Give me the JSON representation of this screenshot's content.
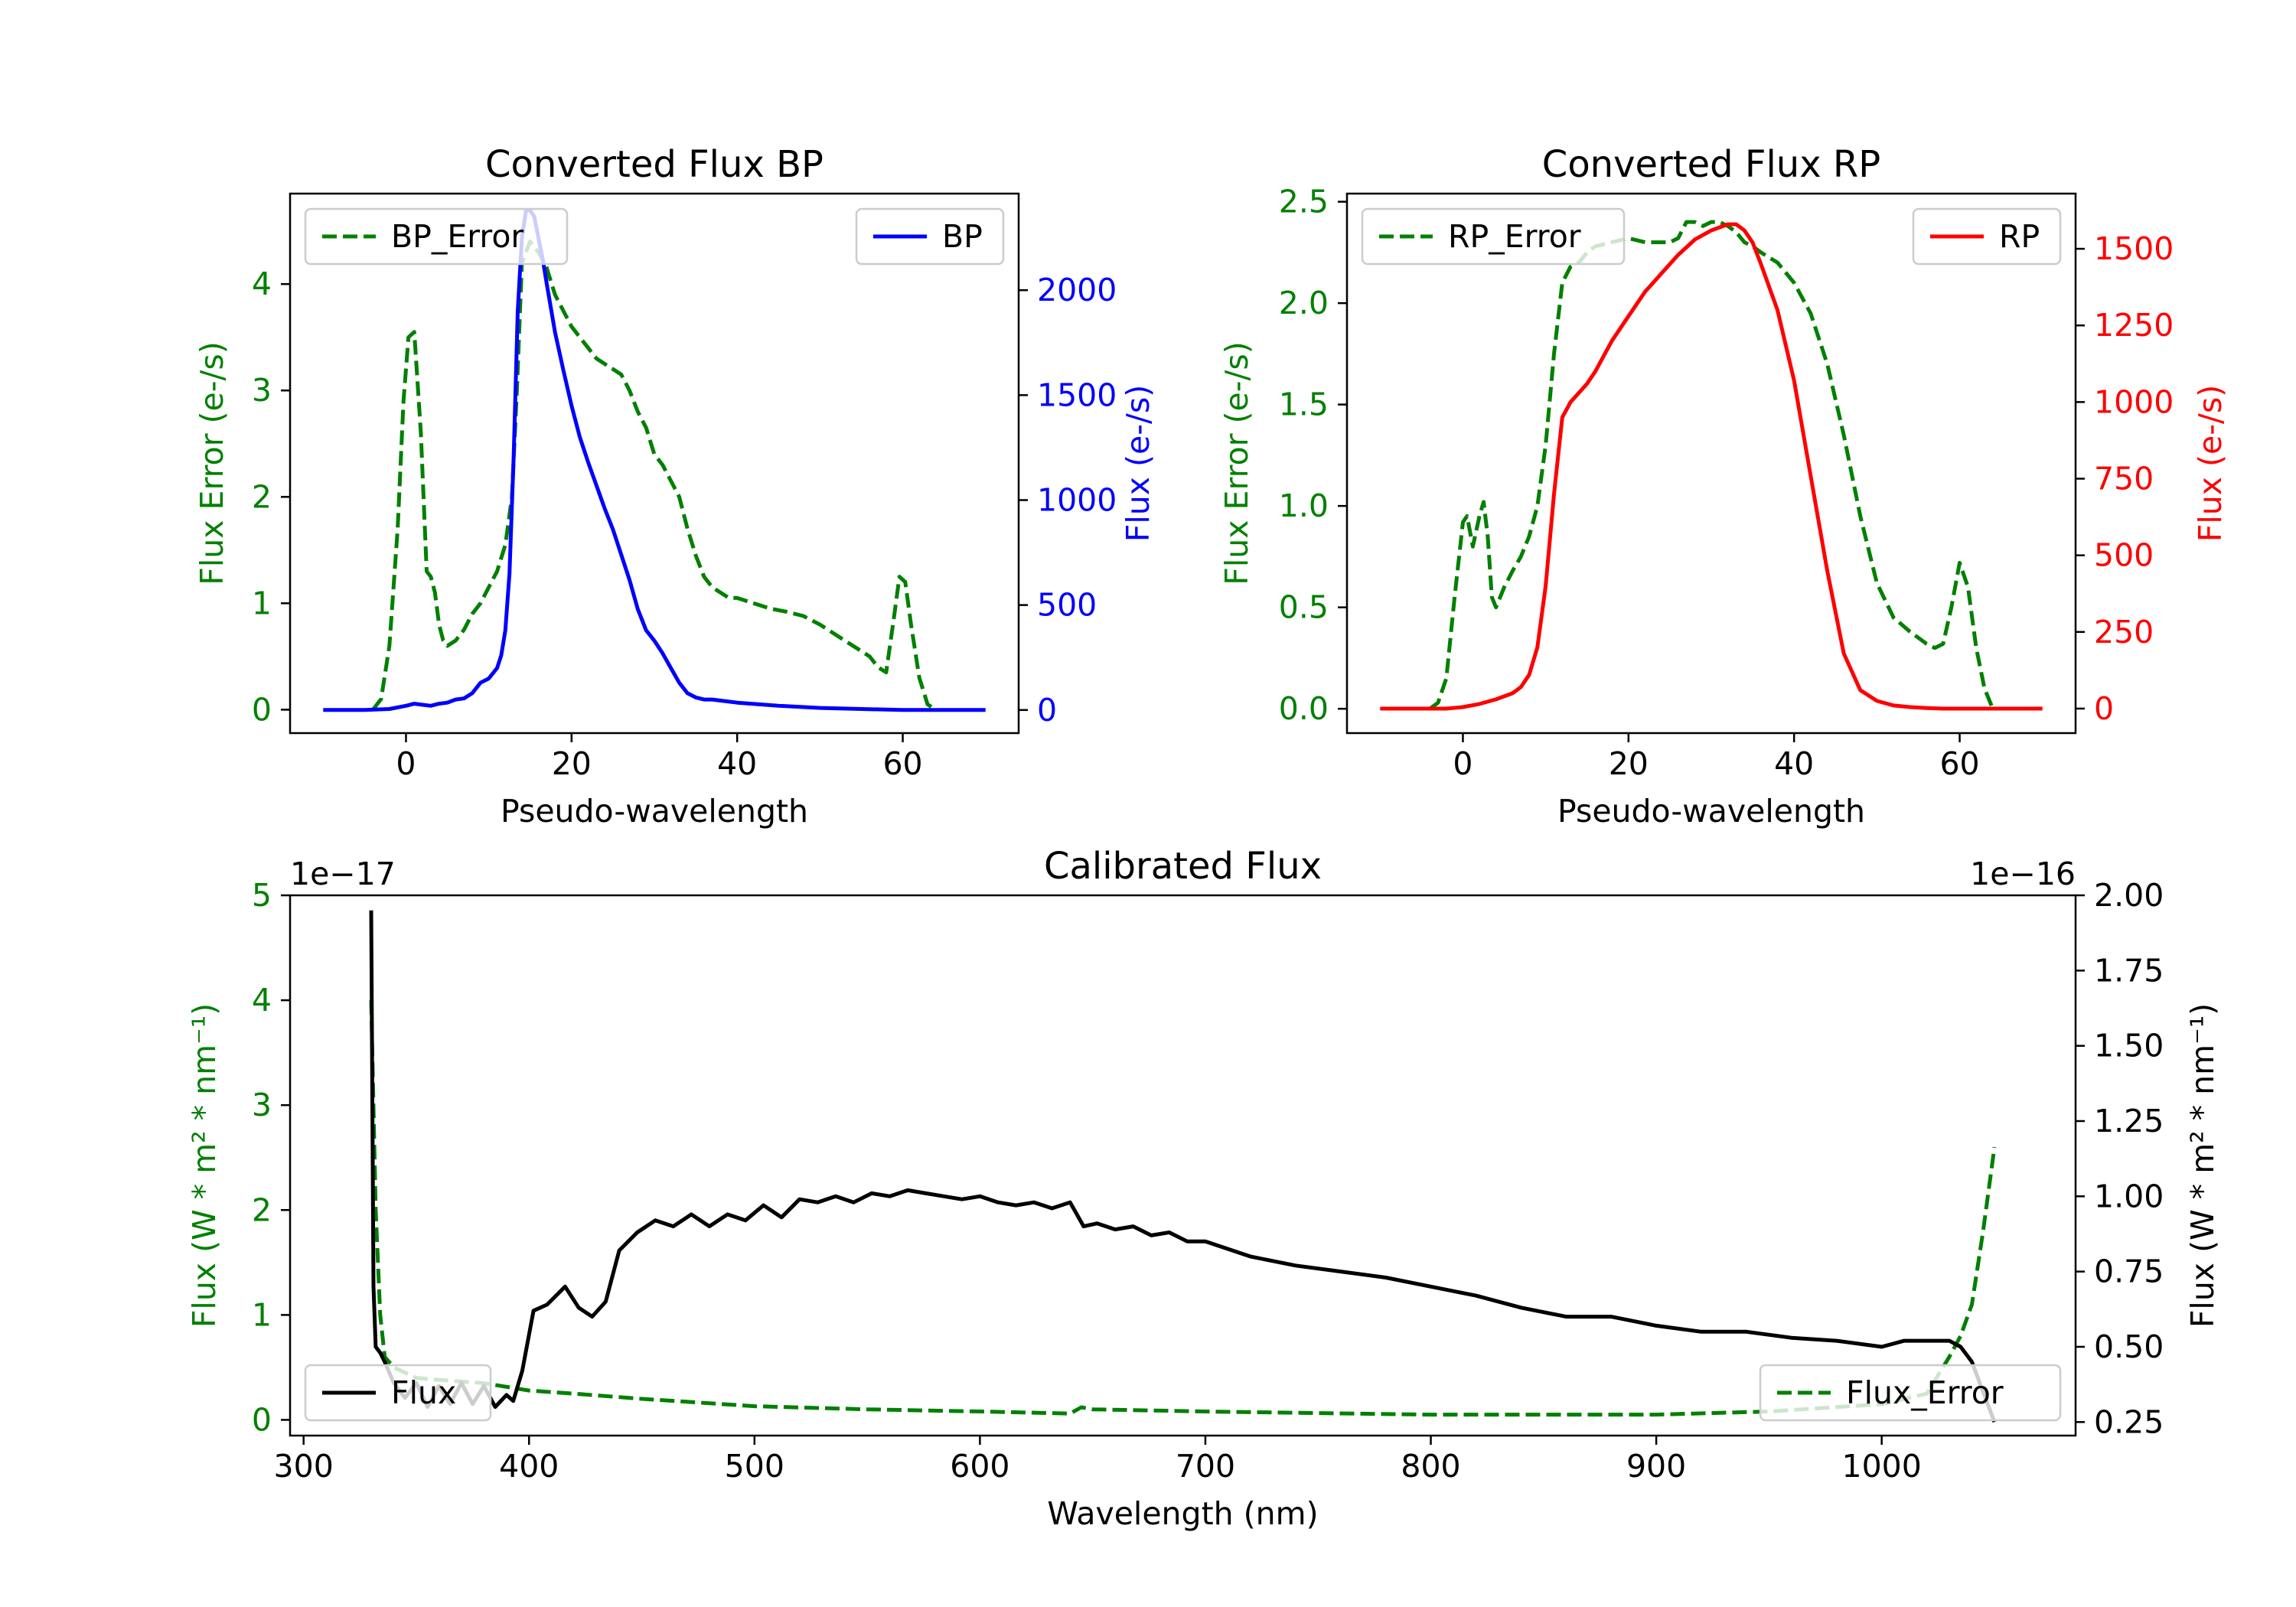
{
  "colors": {
    "green": "#008000",
    "blue": "#0000ff",
    "red": "#ff0000",
    "black": "#000000",
    "axis": "#000000",
    "legend_border": "#cccccc"
  },
  "chart_data": [
    {
      "id": "bp",
      "type": "line",
      "title": "Converted Flux BP",
      "xlabel": "Pseudo-wavelength",
      "ylabel_left": "Flux Error (e-/s)",
      "ylabel_right": "Flux (e-/s)",
      "xlim": [
        -14,
        74
      ],
      "ylim_left": [
        -0.22,
        4.85
      ],
      "ylim_right": [
        -110,
        2460
      ],
      "xticks": [
        0,
        20,
        40,
        60
      ],
      "yticks_left": [
        0,
        1,
        2,
        3,
        4
      ],
      "yticks_right": [
        0,
        500,
        1000,
        1500,
        2000
      ],
      "left_color": "green",
      "right_color": "blue",
      "series": [
        {
          "name": "BP_Error",
          "axis": "left",
          "color": "green",
          "dash": true,
          "x": [
            -4,
            -3,
            -2,
            -1,
            -0.3,
            0.3,
            1,
            1.8,
            2.5,
            3,
            3.5,
            4,
            4.5,
            5,
            6,
            7,
            8,
            9,
            10,
            11,
            12,
            12.8,
            13.4,
            14,
            15,
            16,
            17,
            18,
            19,
            20,
            21,
            22,
            23,
            24,
            25,
            26,
            27,
            28,
            29,
            30,
            31,
            32,
            33,
            34,
            35,
            36,
            37,
            38,
            39,
            40,
            42,
            44,
            46,
            48,
            50,
            52,
            54,
            55,
            56,
            57,
            58,
            59,
            59.6,
            60.3,
            61,
            62,
            63,
            64
          ],
          "values": [
            0,
            0.1,
            0.6,
            1.7,
            2.9,
            3.5,
            3.55,
            2.6,
            1.3,
            1.25,
            1.1,
            0.8,
            0.65,
            0.6,
            0.65,
            0.75,
            0.9,
            1.0,
            1.15,
            1.3,
            1.55,
            2.0,
            3.0,
            4.2,
            4.4,
            4.3,
            4.15,
            3.9,
            3.75,
            3.6,
            3.5,
            3.4,
            3.3,
            3.25,
            3.2,
            3.15,
            3.0,
            2.8,
            2.65,
            2.4,
            2.3,
            2.15,
            2.0,
            1.7,
            1.45,
            1.25,
            1.15,
            1.1,
            1.05,
            1.05,
            1.0,
            0.95,
            0.92,
            0.88,
            0.8,
            0.7,
            0.6,
            0.55,
            0.5,
            0.4,
            0.35,
            0.9,
            1.25,
            1.2,
            0.8,
            0.3,
            0.05,
            0
          ]
        },
        {
          "name": "BP",
          "axis": "right",
          "color": "blue",
          "dash": false,
          "x": [
            -10,
            -5,
            -2,
            0,
            1,
            2,
            3,
            4,
            5,
            6,
            7,
            8,
            9,
            10,
            11,
            11.5,
            12,
            12.5,
            13,
            13.5,
            14,
            14.5,
            15,
            15.5,
            16,
            16.5,
            17,
            18,
            19,
            20,
            21,
            22,
            23,
            24,
            25,
            26,
            27,
            28,
            29,
            30,
            31,
            32,
            33,
            34,
            35,
            36,
            37,
            38,
            40,
            45,
            50,
            55,
            60,
            63,
            65,
            70
          ],
          "values": [
            0,
            0,
            5,
            20,
            30,
            25,
            20,
            30,
            35,
            50,
            55,
            80,
            130,
            150,
            200,
            260,
            380,
            650,
            1200,
            1900,
            2250,
            2380,
            2380,
            2350,
            2250,
            2150,
            2030,
            1800,
            1620,
            1450,
            1300,
            1180,
            1070,
            960,
            860,
            740,
            620,
            480,
            380,
            330,
            270,
            200,
            130,
            80,
            60,
            50,
            50,
            45,
            35,
            20,
            10,
            5,
            0,
            0,
            0,
            0
          ]
        }
      ],
      "legends": [
        {
          "label": "BP_Error",
          "series": "BP_Error",
          "position": "upper left"
        },
        {
          "label": "BP",
          "series": "BP",
          "position": "upper right"
        }
      ]
    },
    {
      "id": "rp",
      "type": "line",
      "title": "Converted Flux RP",
      "xlabel": "Pseudo-wavelength",
      "ylabel_left": "Flux Error (e-/s)",
      "ylabel_right": "Flux (e-/s)",
      "xlim": [
        -14,
        74
      ],
      "ylim_left": [
        -0.12,
        2.54
      ],
      "ylim_right": [
        -80,
        1680
      ],
      "xticks": [
        0,
        20,
        40,
        60
      ],
      "yticks_left": [
        0.0,
        0.5,
        1.0,
        1.5,
        2.0,
        2.5
      ],
      "yticks_right": [
        0,
        250,
        500,
        750,
        1000,
        1250,
        1500
      ],
      "left_color": "green",
      "right_color": "red",
      "series": [
        {
          "name": "RP_Error",
          "axis": "left",
          "color": "green",
          "dash": true,
          "x": [
            -4,
            -3,
            -2,
            -1,
            0,
            0.5,
            1.2,
            2,
            2.5,
            3,
            3.5,
            4,
            5,
            6,
            7,
            8,
            9,
            10,
            11,
            12,
            13,
            14,
            15,
            16,
            18,
            20,
            22,
            24,
            25,
            26,
            27,
            28,
            29,
            30,
            31,
            32,
            33,
            34,
            35,
            36,
            38,
            40,
            42,
            44,
            46,
            48,
            50,
            52,
            54,
            55,
            56,
            57,
            58,
            59,
            60,
            61,
            62,
            63,
            64
          ],
          "values": [
            0,
            0.03,
            0.15,
            0.55,
            0.92,
            0.95,
            0.8,
            0.95,
            1.02,
            0.85,
            0.55,
            0.5,
            0.6,
            0.68,
            0.75,
            0.85,
            1.0,
            1.3,
            1.75,
            2.1,
            2.18,
            2.2,
            2.25,
            2.28,
            2.3,
            2.32,
            2.3,
            2.3,
            2.3,
            2.32,
            2.4,
            2.4,
            2.38,
            2.4,
            2.4,
            2.38,
            2.35,
            2.3,
            2.28,
            2.25,
            2.2,
            2.1,
            1.95,
            1.7,
            1.35,
            0.95,
            0.62,
            0.45,
            0.38,
            0.35,
            0.32,
            0.3,
            0.32,
            0.5,
            0.72,
            0.6,
            0.3,
            0.1,
            0
          ]
        },
        {
          "name": "RP",
          "axis": "right",
          "color": "red",
          "dash": false,
          "x": [
            -10,
            -5,
            -2,
            0,
            2,
            4,
            6,
            7,
            8,
            9,
            10,
            11,
            12,
            13,
            14,
            15,
            16,
            18,
            20,
            22,
            24,
            26,
            28,
            30,
            32,
            33,
            34,
            35,
            36,
            38,
            40,
            42,
            44,
            46,
            48,
            50,
            52,
            54,
            56,
            58,
            60,
            65,
            70
          ],
          "values": [
            0,
            0,
            0,
            5,
            15,
            30,
            50,
            70,
            110,
            200,
            400,
            700,
            950,
            1000,
            1030,
            1060,
            1100,
            1200,
            1280,
            1360,
            1420,
            1480,
            1530,
            1560,
            1580,
            1580,
            1560,
            1520,
            1450,
            1300,
            1070,
            760,
            450,
            180,
            60,
            25,
            10,
            5,
            2,
            0,
            0,
            0,
            0
          ]
        }
      ],
      "legends": [
        {
          "label": "RP_Error",
          "series": "RP_Error",
          "position": "upper left"
        },
        {
          "label": "RP",
          "series": "RP",
          "position": "upper right"
        }
      ]
    },
    {
      "id": "cal",
      "type": "line",
      "title": "Calibrated Flux",
      "xlabel": "Wavelength (nm)",
      "ylabel_left": "Flux (W * m² * nm⁻¹)",
      "ylabel_right": "Flux (W * m² * nm⁻¹)",
      "offset_left": "1e−17",
      "offset_right": "1e−16",
      "xlim": [
        294,
        1086
      ],
      "ylim_left": [
        -0.15,
        5.0
      ],
      "ylim_right": [
        0.205,
        2.0
      ],
      "xticks": [
        300,
        400,
        500,
        600,
        700,
        800,
        900,
        1000
      ],
      "yticks_left": [
        0,
        1,
        2,
        3,
        4,
        5
      ],
      "yticks_right": [
        0.25,
        0.5,
        0.75,
        1.0,
        1.25,
        1.5,
        1.75,
        2.0
      ],
      "ytick_labels_right": [
        "0.25",
        "0.50",
        "0.75",
        "1.00",
        "1.25",
        "1.50",
        "1.75",
        "2.00"
      ],
      "left_color": "green",
      "right_color": "black",
      "series": [
        {
          "name": "Flux_Error",
          "axis": "left",
          "color": "green",
          "dash": true,
          "x": [
            330,
            332,
            334,
            336,
            340,
            345,
            350,
            360,
            380,
            400,
            420,
            450,
            500,
            550,
            600,
            640,
            645,
            650,
            700,
            800,
            900,
            950,
            1000,
            1020,
            1030,
            1035,
            1040,
            1045,
            1050
          ],
          "values": [
            4.0,
            2.0,
            1.0,
            0.6,
            0.5,
            0.45,
            0.4,
            0.38,
            0.35,
            0.28,
            0.25,
            0.2,
            0.13,
            0.1,
            0.08,
            0.06,
            0.12,
            0.1,
            0.08,
            0.05,
            0.05,
            0.08,
            0.15,
            0.25,
            0.6,
            0.8,
            1.1,
            1.8,
            2.6
          ]
        },
        {
          "name": "Flux",
          "axis": "right",
          "color": "black",
          "dash": false,
          "x": [
            330,
            331,
            332,
            334,
            336,
            340,
            345,
            350,
            355,
            360,
            365,
            370,
            375,
            380,
            385,
            390,
            393,
            397,
            402,
            408,
            416,
            422,
            428,
            434,
            440,
            448,
            456,
            464,
            472,
            480,
            488,
            496,
            504,
            512,
            520,
            528,
            536,
            544,
            552,
            560,
            568,
            576,
            584,
            592,
            600,
            608,
            616,
            624,
            632,
            640,
            646,
            652,
            660,
            668,
            676,
            684,
            692,
            700,
            720,
            740,
            760,
            780,
            800,
            820,
            840,
            860,
            880,
            900,
            920,
            940,
            960,
            980,
            1000,
            1010,
            1020,
            1030,
            1035,
            1040,
            1045,
            1050
          ],
          "values": [
            1.95,
            0.7,
            0.5,
            0.48,
            0.45,
            0.38,
            0.33,
            0.38,
            0.3,
            0.37,
            0.31,
            0.38,
            0.31,
            0.37,
            0.3,
            0.34,
            0.32,
            0.42,
            0.62,
            0.64,
            0.7,
            0.63,
            0.6,
            0.65,
            0.82,
            0.88,
            0.92,
            0.9,
            0.94,
            0.9,
            0.94,
            0.92,
            0.97,
            0.93,
            0.99,
            0.98,
            1.0,
            0.98,
            1.01,
            1.0,
            1.02,
            1.01,
            1.0,
            0.99,
            1.0,
            0.98,
            0.97,
            0.98,
            0.96,
            0.98,
            0.9,
            0.91,
            0.89,
            0.9,
            0.87,
            0.88,
            0.85,
            0.85,
            0.8,
            0.77,
            0.75,
            0.73,
            0.7,
            0.67,
            0.63,
            0.6,
            0.6,
            0.57,
            0.55,
            0.55,
            0.53,
            0.52,
            0.5,
            0.52,
            0.52,
            0.52,
            0.5,
            0.45,
            0.35,
            0.25
          ]
        }
      ],
      "legends": [
        {
          "label": "Flux",
          "series": "Flux",
          "position": "lower left"
        },
        {
          "label": "Flux_Error",
          "series": "Flux_Error",
          "position": "lower right"
        }
      ]
    }
  ]
}
